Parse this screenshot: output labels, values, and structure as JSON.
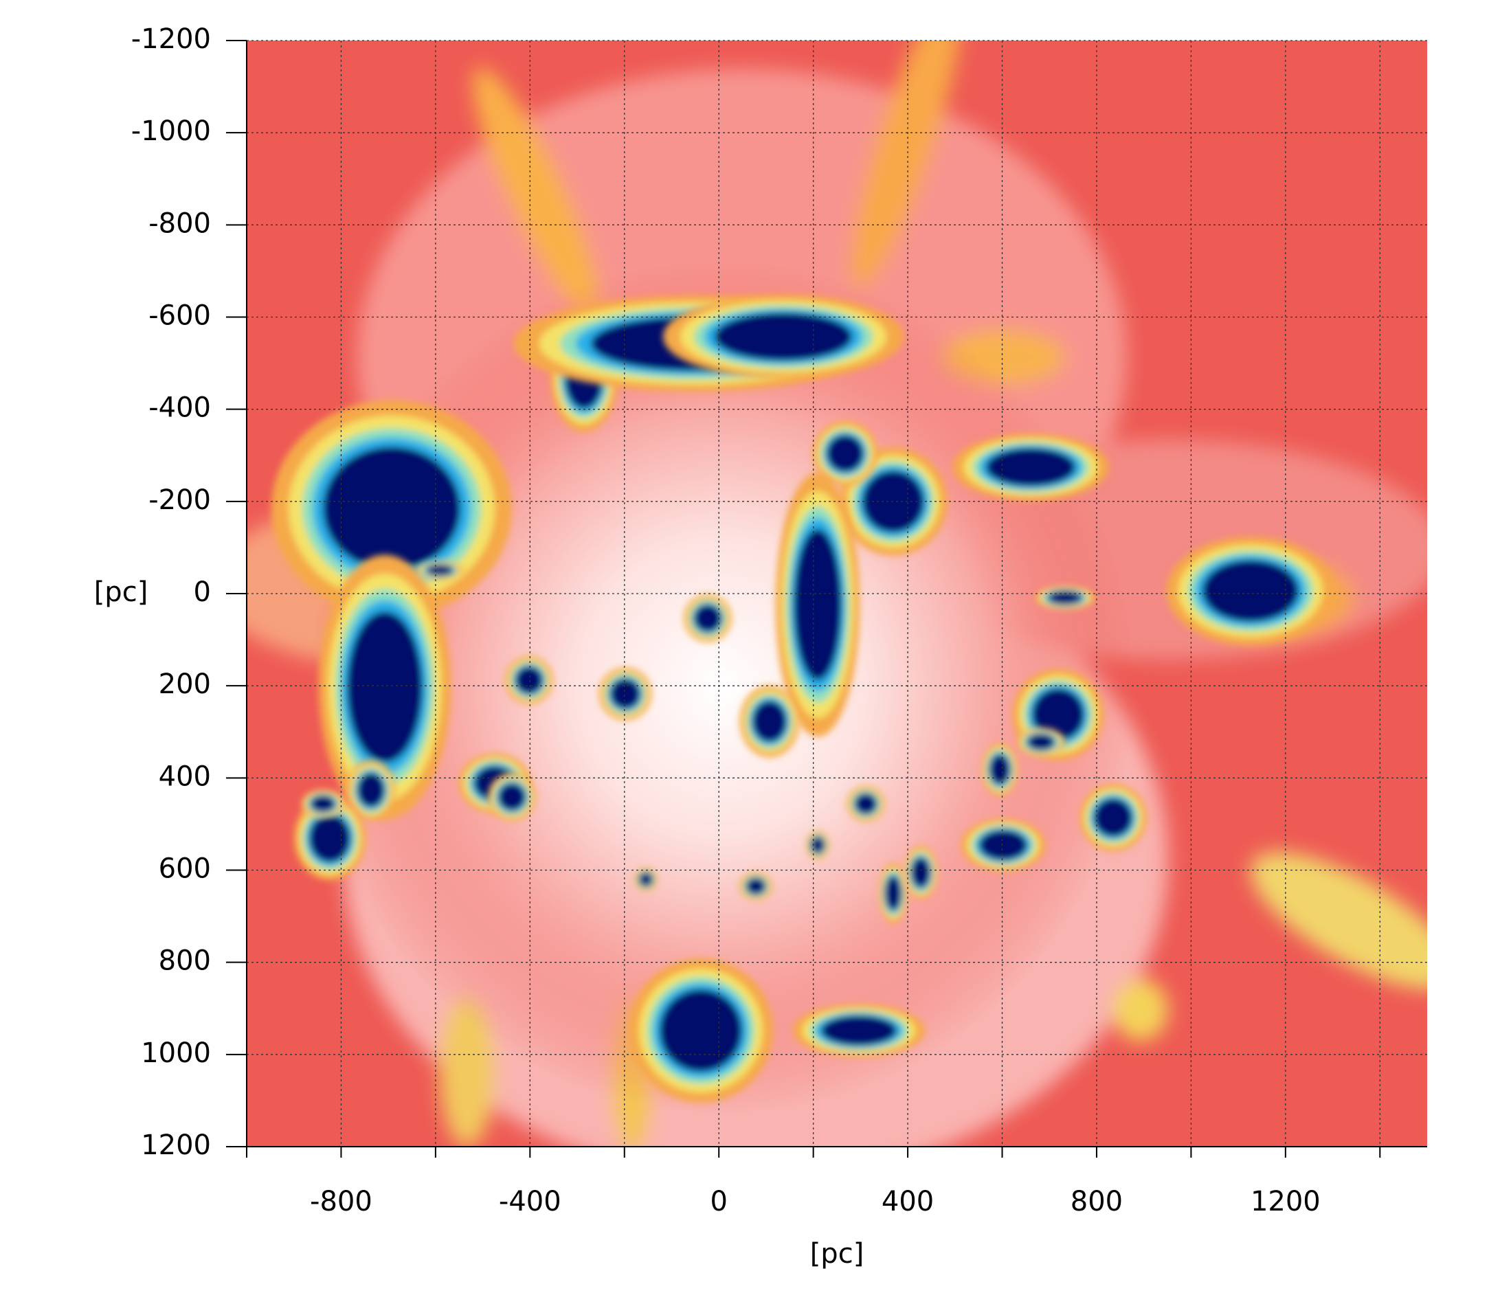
{
  "chart_data": {
    "type": "heatmap",
    "x_label": "[pc]",
    "y_label": "[pc]",
    "xlim": [
      -1000,
      1500
    ],
    "ylim": [
      1200,
      -1200
    ],
    "xticks": [
      -800,
      -400,
      0,
      400,
      800,
      1200
    ],
    "minor_xticks": [
      -1000,
      -600,
      -200,
      200,
      600,
      1000,
      1400
    ],
    "yticks": [
      -1200,
      -1000,
      -800,
      -600,
      -400,
      -200,
      0,
      200,
      400,
      600,
      800,
      1000,
      1200
    ],
    "grid": true
  }
}
